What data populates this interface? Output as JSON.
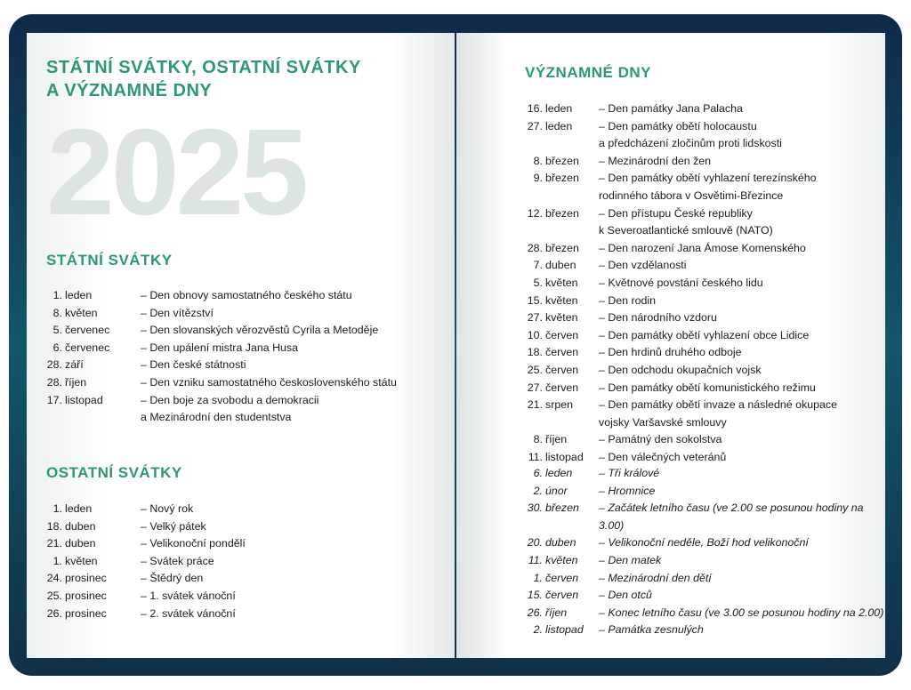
{
  "left_page": {
    "title_line1": "STÁTNÍ SVÁTKY, OSTATNÍ SVÁTKY",
    "title_line2": "A VÝZNAMNÉ DNY",
    "year": "2025",
    "state_holidays": {
      "heading": "STÁTNÍ SVÁTKY",
      "items": [
        {
          "day": "1.",
          "month": "leden",
          "text": "– Den obnovy samostatného českého státu"
        },
        {
          "day": "8.",
          "month": "květen",
          "text": "– Den vítězství"
        },
        {
          "day": "5.",
          "month": "červenec",
          "text": "– Den slovanských věrozvěstů Cyrila a Metoděje"
        },
        {
          "day": "6.",
          "month": "červenec",
          "text": "– Den upálení mistra Jana Husa"
        },
        {
          "day": "28.",
          "month": "září",
          "text": "– Den české státnosti"
        },
        {
          "day": "28.",
          "month": "říjen",
          "text": "– Den vzniku samostatného československého státu"
        },
        {
          "day": "17.",
          "month": "listopad",
          "text": "– Den boje za svobodu a demokracii\n  a Mezinárodní den studentstva"
        }
      ]
    },
    "other_holidays": {
      "heading": "OSTATNÍ SVÁTKY",
      "items": [
        {
          "day": "1.",
          "month": "leden",
          "text": "– Nový rok"
        },
        {
          "day": "18.",
          "month": "duben",
          "text": "– Velký pátek"
        },
        {
          "day": "21.",
          "month": "duben",
          "text": "– Velikonoční pondělí"
        },
        {
          "day": "1.",
          "month": "květen",
          "text": "– Svátek práce"
        },
        {
          "day": "24.",
          "month": "prosinec",
          "text": "– Štědrý den"
        },
        {
          "day": "25.",
          "month": "prosinec",
          "text": "– 1. svátek vánoční"
        },
        {
          "day": "26.",
          "month": "prosinec",
          "text": "– 2. svátek vánoční"
        }
      ]
    }
  },
  "right_page": {
    "heading": "VÝZNAMNÉ DNY",
    "items": [
      {
        "day": "16.",
        "month": "leden",
        "text": "– Den památky Jana Palacha"
      },
      {
        "day": "27.",
        "month": "leden",
        "text": "– Den památky obětí holocaustu\n  a předcházení zločinům proti lidskosti"
      },
      {
        "day": "8.",
        "month": "březen",
        "text": "– Mezinárodní den žen"
      },
      {
        "day": "9.",
        "month": "březen",
        "text": "– Den památky obětí vyhlazení terezínského\n  rodinného tábora v Osvětimi-Březince"
      },
      {
        "day": "12.",
        "month": "březen",
        "text": "– Den přístupu České republiky\n  k Severoatlantické smlouvě (NATO)"
      },
      {
        "day": "28.",
        "month": "březen",
        "text": "– Den narození Jana Ámose Komenského"
      },
      {
        "day": "7.",
        "month": "duben",
        "text": "– Den vzdělanosti"
      },
      {
        "day": "5.",
        "month": "květen",
        "text": "– Květnové povstání českého lidu"
      },
      {
        "day": "15.",
        "month": "květen",
        "text": "– Den rodin"
      },
      {
        "day": "27.",
        "month": "květen",
        "text": "– Den národního vzdoru"
      },
      {
        "day": "10.",
        "month": "červen",
        "text": "– Den památky obětí vyhlazení obce Lidice"
      },
      {
        "day": "18.",
        "month": "červen",
        "text": "– Den hrdinů druhého odboje"
      },
      {
        "day": "25.",
        "month": "červen",
        "text": "– Den odchodu okupačních vojsk"
      },
      {
        "day": "27.",
        "month": "červen",
        "text": "– Den památky obětí komunistického režimu"
      },
      {
        "day": "21.",
        "month": "srpen",
        "text": "– Den památky obětí invaze a následné okupace\n  vojsky Varšavské smlouvy"
      },
      {
        "day": "8.",
        "month": "říjen",
        "text": "– Památný den sokolstva"
      },
      {
        "day": "11.",
        "month": "listopad",
        "text": "– Den válečných veteránů"
      }
    ],
    "other_days": [
      {
        "day": "6.",
        "month": "leden",
        "text": "– Tři králové"
      },
      {
        "day": "2.",
        "month": "únor",
        "text": "– Hromnice"
      },
      {
        "day": "30.",
        "month": "březen",
        "text": "– Začátek letního času (ve 2.00 se posunou hodiny na 3.00)"
      },
      {
        "day": "20.",
        "month": "duben",
        "text": "– Velikonoční neděle, Boží hod velikonoční"
      },
      {
        "day": "11.",
        "month": "květen",
        "text": "– Den matek"
      },
      {
        "day": "1.",
        "month": "červen",
        "text": "– Mezinárodní den dětí"
      },
      {
        "day": "15.",
        "month": "červen",
        "text": "– Den otců"
      },
      {
        "day": "26.",
        "month": "říjen",
        "text": "– Konec letního času (ve 3.00 se posunou hodiny na 2.00)"
      },
      {
        "day": "2.",
        "month": "listopad",
        "text": "– Památka zesnulých"
      }
    ]
  }
}
